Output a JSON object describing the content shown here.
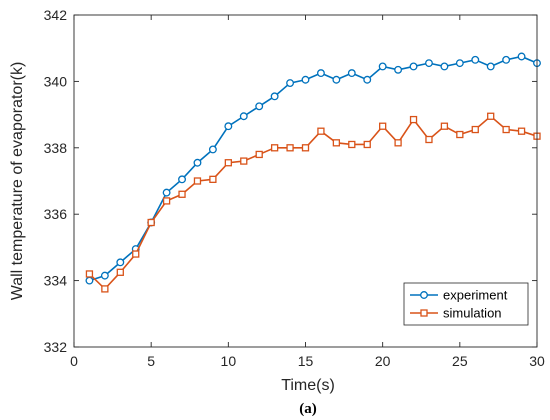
{
  "chart_data": {
    "type": "line",
    "xlabel": "Time(s)",
    "ylabel": "Wall temperature of evaporator(k)",
    "xlim": [
      0,
      30
    ],
    "ylim": [
      332,
      342
    ],
    "xticks": [
      "0",
      "5",
      "10",
      "15",
      "20",
      "25",
      "30"
    ],
    "yticks": [
      "332",
      "334",
      "336",
      "338",
      "340",
      "342"
    ],
    "grid": false,
    "legend_position": "bottom-right",
    "caption": "(a)",
    "x": [
      1,
      2,
      3,
      4,
      5,
      6,
      7,
      8,
      9,
      10,
      11,
      12,
      13,
      14,
      15,
      16,
      17,
      18,
      19,
      20,
      21,
      22,
      23,
      24,
      25,
      26,
      27,
      28,
      29,
      30
    ],
    "series": [
      {
        "name": "experiment",
        "marker": "circle",
        "color": "#0072BD",
        "values": [
          334.0,
          334.15,
          334.55,
          334.95,
          335.75,
          336.65,
          337.05,
          337.55,
          337.95,
          338.65,
          338.95,
          339.25,
          339.55,
          339.95,
          340.05,
          340.25,
          340.05,
          340.25,
          340.05,
          340.45,
          340.35,
          340.45,
          340.55,
          340.45,
          340.55,
          340.65,
          340.45,
          340.65,
          340.75,
          340.55
        ]
      },
      {
        "name": "simulation",
        "marker": "square",
        "color": "#D95319",
        "values": [
          334.2,
          333.75,
          334.25,
          334.8,
          335.75,
          336.4,
          336.6,
          337.0,
          337.05,
          337.55,
          337.6,
          337.8,
          338.0,
          338.0,
          338.0,
          338.5,
          338.15,
          338.1,
          338.1,
          338.65,
          338.15,
          338.85,
          338.25,
          338.65,
          338.4,
          338.55,
          338.95,
          338.55,
          338.5,
          338.35
        ]
      }
    ]
  }
}
